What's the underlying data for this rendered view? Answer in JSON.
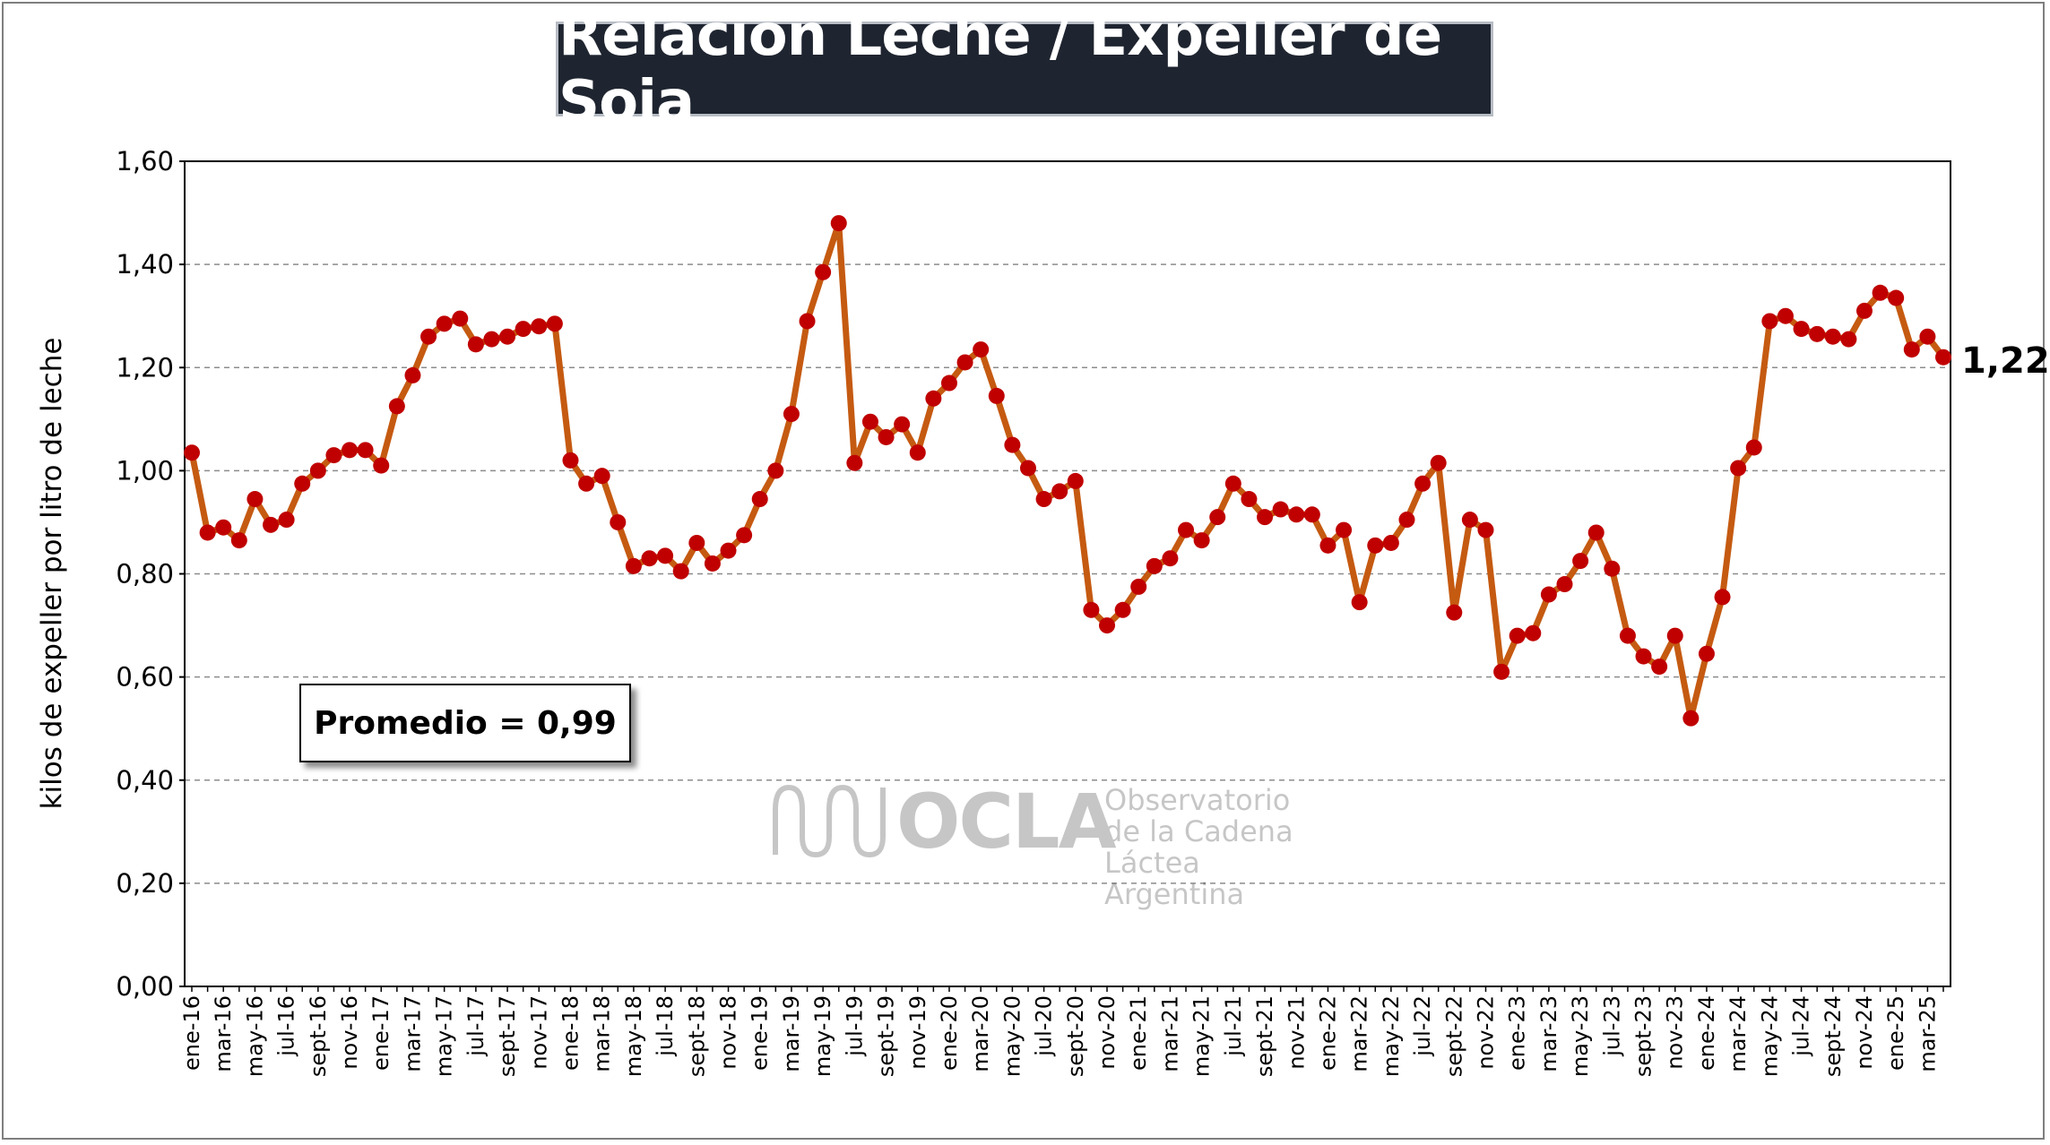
{
  "chart_data": {
    "type": "line",
    "title": "Relación Leche / Expeller de Soja",
    "ylabel": "kilos de expeller por litro de leche",
    "xlabel": "",
    "ylim": [
      0,
      1.6
    ],
    "yticks": [
      "0,00",
      "0,20",
      "0,40",
      "0,60",
      "0,80",
      "1,00",
      "1,20",
      "1,40",
      "1,60"
    ],
    "grid": "horizontal dashed",
    "line_color": "#c55a11",
    "marker_color": "#c00000",
    "x_tick_labels": [
      "ene-16",
      "mar-16",
      "may-16",
      "jul-16",
      "sept-16",
      "nov-16",
      "ene-17",
      "mar-17",
      "may-17",
      "jul-17",
      "sept-17",
      "nov-17",
      "ene-18",
      "mar-18",
      "may-18",
      "jul-18",
      "sept-18",
      "nov-18",
      "ene-19",
      "mar-19",
      "may-19",
      "jul-19",
      "sept-19",
      "nov-19",
      "ene-20",
      "mar-20",
      "may-20",
      "jul-20",
      "sept-20",
      "nov-20",
      "ene-21",
      "mar-21",
      "may-21",
      "jul-21",
      "sept-21",
      "nov-21",
      "ene-22",
      "mar-22",
      "may-22",
      "jul-22",
      "sept-22",
      "nov-22",
      "ene-23",
      "mar-23",
      "may-23",
      "jul-23",
      "sept-23",
      "nov-23",
      "ene-24",
      "mar-24",
      "may-24",
      "jul-24",
      "sept-24",
      "nov-24",
      "ene-25",
      "mar-25"
    ],
    "values": [
      1.035,
      0.88,
      0.89,
      0.865,
      0.945,
      0.895,
      0.905,
      0.975,
      1.0,
      1.03,
      1.04,
      1.04,
      1.01,
      1.125,
      1.185,
      1.26,
      1.285,
      1.295,
      1.245,
      1.255,
      1.26,
      1.275,
      1.28,
      1.285,
      1.02,
      0.975,
      0.99,
      0.9,
      0.815,
      0.83,
      0.835,
      0.805,
      0.86,
      0.82,
      0.845,
      0.875,
      0.945,
      1.0,
      1.11,
      1.29,
      1.385,
      1.48,
      1.015,
      1.095,
      1.065,
      1.09,
      1.035,
      1.14,
      1.17,
      1.21,
      1.235,
      1.145,
      1.05,
      1.005,
      0.945,
      0.96,
      0.98,
      0.73,
      0.7,
      0.73,
      0.775,
      0.815,
      0.83,
      0.885,
      0.865,
      0.91,
      0.975,
      0.945,
      0.91,
      0.925,
      0.915,
      0.915,
      0.855,
      0.885,
      0.745,
      0.855,
      0.86,
      0.905,
      0.975,
      1.015,
      0.725,
      0.905,
      0.885,
      0.61,
      0.68,
      0.685,
      0.76,
      0.78,
      0.825,
      0.88,
      0.81,
      0.68,
      0.64,
      0.62,
      0.68,
      0.52,
      0.645,
      0.755,
      1.005,
      1.045,
      1.29,
      1.3,
      1.275,
      1.265,
      1.26,
      1.255,
      1.31,
      1.345,
      1.335,
      1.235,
      1.26,
      1.22
    ],
    "last_value_label": "1,22",
    "annotation": "Promedio = 0,99"
  },
  "watermark": {
    "name": "OCLA",
    "line1": "Observatorio",
    "line2": "de la Cadena Láctea",
    "line3": "Argentina"
  }
}
